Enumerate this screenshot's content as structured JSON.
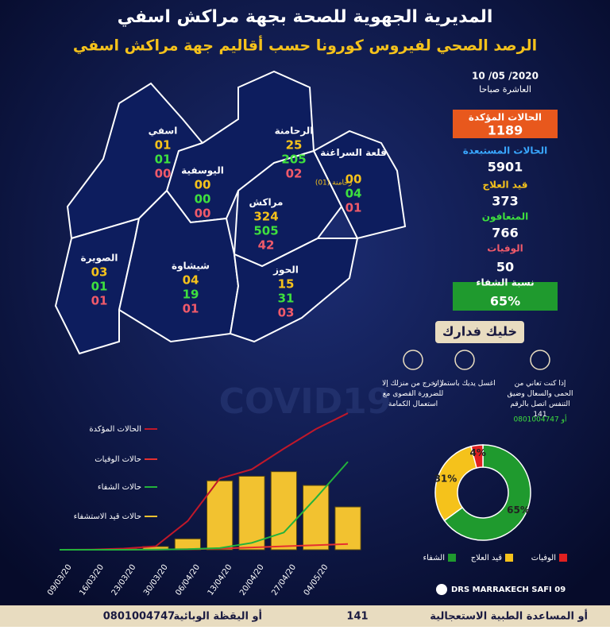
{
  "header": {
    "title": "المديرية الجهوية للصحة بجهة مراكش اسفي",
    "subtitle": "الرصد الصحي لفيروس كورونا حسب أقاليم جهة مراكش اسفي"
  },
  "date": {
    "date": "10 /05 /2020",
    "time": "العاشرة صباحا"
  },
  "regions": [
    {
      "name": "اسفي",
      "values": [
        "01",
        "01",
        "00"
      ]
    },
    {
      "name": "الرحامنة",
      "values": [
        "25",
        "205",
        "02"
      ]
    },
    {
      "name": "اليوسفية",
      "values": [
        "00",
        "00",
        "00"
      ]
    },
    {
      "name": "قلعة السراغنة",
      "note": "(01) رحامنة",
      "values": [
        "00",
        "04",
        "01"
      ]
    },
    {
      "name": "مراكش",
      "values": [
        "324",
        "505",
        "42"
      ]
    },
    {
      "name": "الصويرة",
      "values": [
        "03",
        "01",
        "01"
      ]
    },
    {
      "name": "شيشاوة",
      "values": [
        "04",
        "19",
        "01"
      ]
    },
    {
      "name": "الحوز",
      "values": [
        "15",
        "31",
        "03"
      ]
    }
  ],
  "stats": [
    {
      "label": "الحالات المؤكدة",
      "value": 1189
    },
    {
      "label": "الحالات المستبعدة",
      "value": 5901
    },
    {
      "label": "قيد العلاج",
      "value": 373
    },
    {
      "label": "المتعافون",
      "value": 766
    },
    {
      "label": "الوفيات",
      "value": 50
    },
    {
      "label": "نسبة الشفاء",
      "value": "65%"
    }
  ],
  "tips": {
    "title": "خليك فدارك",
    "items": [
      "لا تخرج من منزلك إلا للضرورة القصوى مع استعمال الكمامة",
      "اغسل يديك باستمرار",
      "إذا كنت تعاني من الحمى والسعال وضيق التنفس اتصل بالرقم 141",
      "أو 0801004747"
    ]
  },
  "watermark": "COVID19",
  "facebook": "DRS MARRAKECH SAFI 09",
  "footer": {
    "medical": "أو المساعدة الطبية الاستعجالية",
    "medical_number": "141",
    "vigilance": "أو اليقظة الوبائية",
    "vigilance_number": "0801004747"
  },
  "chart_data": [
    {
      "type": "line",
      "categories": [
        "09/03/20",
        "16/03/20",
        "23/03/20",
        "30/03/20",
        "06/04/20",
        "13/04/20",
        "20/04/20",
        "27/04/20",
        "04/05/20",
        null
      ],
      "ylim": [
        0,
        1300
      ],
      "series": [
        {
          "name": "الحالات المؤكدة",
          "color": "#c0182a",
          "values": [
            0,
            2,
            10,
            30,
            250,
            620,
            700,
            880,
            1050,
            1189
          ]
        },
        {
          "name": "حالات الوفيات",
          "color": "#e53030",
          "values": [
            0,
            0,
            1,
            2,
            5,
            10,
            20,
            30,
            40,
            50
          ]
        },
        {
          "name": "حالات الشفاء",
          "color": "#22b23c",
          "values": [
            0,
            0,
            0,
            2,
            5,
            15,
            60,
            150,
            450,
            766
          ]
        },
        {
          "name": "حالات قيد الاستشفاء",
          "color": "#f2c230",
          "kind": "bar",
          "values": [
            0,
            2,
            10,
            28,
            95,
            600,
            640,
            680,
            560,
            373
          ]
        }
      ]
    },
    {
      "type": "pie",
      "categories": [
        "الشفاء",
        "قيد العلاج",
        "الوفيات"
      ],
      "values": [
        65,
        31,
        4
      ],
      "value_labels": [
        "65%",
        "31%",
        "4%"
      ],
      "colors": [
        "#1f9a2e",
        "#f5c21b",
        "#e02020"
      ]
    }
  ]
}
